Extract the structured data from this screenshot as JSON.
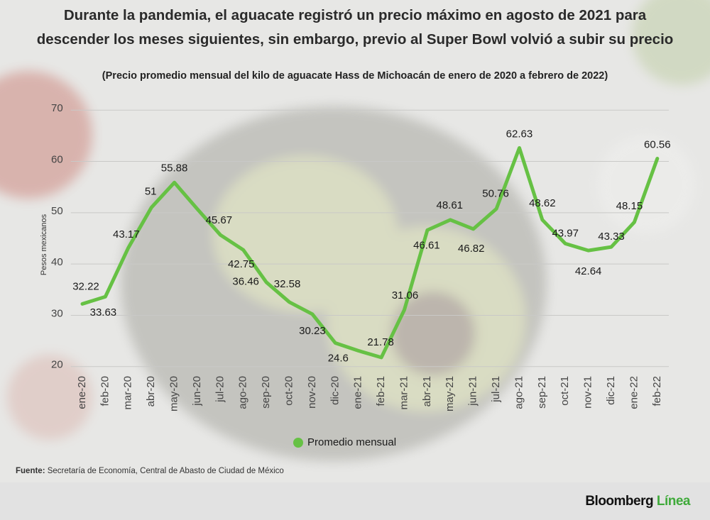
{
  "chart_data": {
    "type": "line",
    "title": [
      "Durante la pandemia, el aguacate registró un precio máximo en agosto de 2021 para",
      "descender los meses siguientes, sin embargo, previo al Super Bowl volvió a subir su precio"
    ],
    "subtitle": "(Precio promedio mensual del kilo de aguacate Hass de Michoacán de enero de 2020 a febrero de 2022)",
    "y_label": "Pesos mexicanos",
    "categories": [
      "ene-20",
      "feb-20",
      "mar-20",
      "abr-20",
      "may-20",
      "jun-20",
      "jul-20",
      "ago-20",
      "sep-20",
      "oct-20",
      "nov-20",
      "dic-20",
      "ene-21",
      "feb-21",
      "mar-21",
      "abr-21",
      "may-21",
      "jun-21",
      "jul-21",
      "ago-21",
      "sep-21",
      "oct-21",
      "nov-21",
      "dic-21",
      "ene-22",
      "feb-22"
    ],
    "series": [
      {
        "name": "Promedio mensual",
        "color": "#66c144",
        "values": [
          32.22,
          33.63,
          43.17,
          51,
          55.88,
          50.7,
          45.67,
          42.75,
          36.46,
          32.58,
          30.23,
          24.6,
          23.1,
          21.78,
          31.06,
          46.61,
          48.61,
          46.82,
          50.76,
          62.63,
          48.62,
          43.97,
          42.64,
          43.33,
          48.15,
          60.56
        ],
        "value_labels": [
          "32.22",
          "33.63",
          "43.17",
          "51",
          "55.88",
          null,
          "45.67",
          "42.75",
          "36.46",
          "32.58",
          "30.23",
          "24.6",
          null,
          "21.78",
          "31.06",
          "46.61",
          "48.61",
          "46.82",
          "50.76",
          "62.63",
          "48.62",
          "43.97",
          "42.64",
          "43.33",
          "48.15",
          "60.56"
        ]
      }
    ],
    "ylim": [
      19,
      71
    ],
    "yticks": [
      20,
      30,
      40,
      50,
      60,
      70
    ],
    "grid": true,
    "source_label": "Fuente:",
    "source": "Secretaría de Economía, Central de Abasto de Ciudad de México",
    "brand": "Bloomberg",
    "brand_accent": "Línea"
  }
}
